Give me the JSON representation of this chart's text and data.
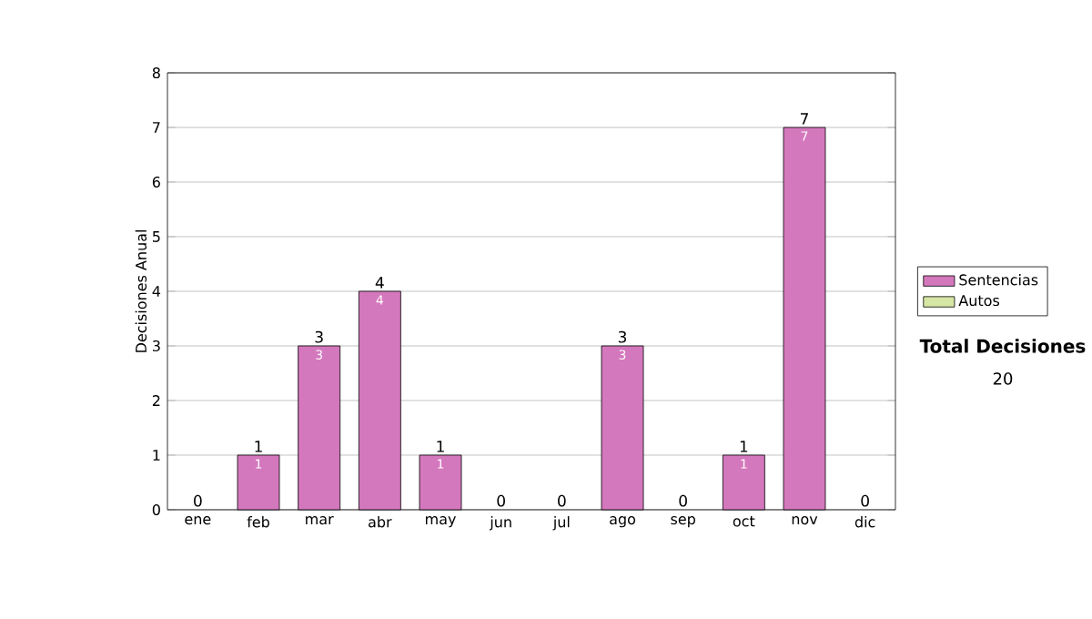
{
  "chart_data": {
    "type": "bar",
    "stacked": true,
    "ylabel": "Decisiones Anual",
    "categories": [
      "ene",
      "feb",
      "mar",
      "abr",
      "may",
      "jun",
      "jul",
      "ago",
      "sep",
      "oct",
      "nov",
      "dic"
    ],
    "series": [
      {
        "name": "Sentencias",
        "color": "#d478bd",
        "values": [
          0,
          1,
          3,
          4,
          1,
          0,
          0,
          3,
          0,
          1,
          7,
          0
        ],
        "value_labels": [
          null,
          "1",
          "3",
          "4",
          "1",
          null,
          null,
          "3",
          null,
          "1",
          "7",
          null
        ]
      },
      {
        "name": "Autos",
        "color": "#d6e6a4",
        "values": [
          0,
          0,
          0,
          0,
          0,
          0,
          0,
          0,
          0,
          0,
          0,
          0
        ]
      }
    ],
    "totals": [
      "0",
      "1",
      "3",
      "4",
      "1",
      "0",
      "0",
      "3",
      "0",
      "1",
      "7",
      "0"
    ],
    "ylim": [
      0,
      8
    ],
    "yticks": [
      0,
      1,
      2,
      3,
      4,
      5,
      6,
      7,
      8
    ],
    "grid": "y",
    "legend": "right",
    "annotations": [
      "Total Decisiones",
      "20"
    ]
  }
}
